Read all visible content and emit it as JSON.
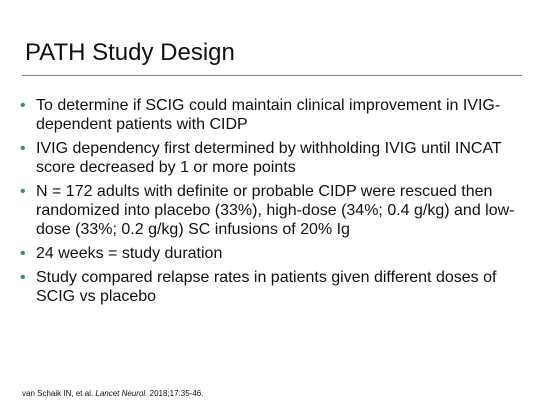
{
  "slide": {
    "title": "PATH Study Design",
    "bullet_glyph": "•",
    "bullets": [
      "To determine if SCIG could maintain clinical improvement in IVIG-dependent  patients with CIDP",
      "IVIG dependency first determined by withholding IVIG until INCAT score decreased by 1 or more points",
      "N = 172 adults with definite or probable CIDP were rescued then randomized into placebo (33%), high-dose (34%; 0.4 g/kg) and low-dose (33%; 0.2 g/kg) SC infusions of 20% Ig",
      "24 weeks = study duration",
      "Study compared relapse rates in patients given different doses of SCIG vs placebo"
    ],
    "citation": {
      "authors": "van Schaik IN, et al. ",
      "journal": "Lancet Neurol.",
      "details": " 2018;17:35-46."
    }
  },
  "colors": {
    "divider": "#5b8fa6",
    "bullet": "#2e8b8b",
    "text": "#111111",
    "background": "#ffffff"
  }
}
